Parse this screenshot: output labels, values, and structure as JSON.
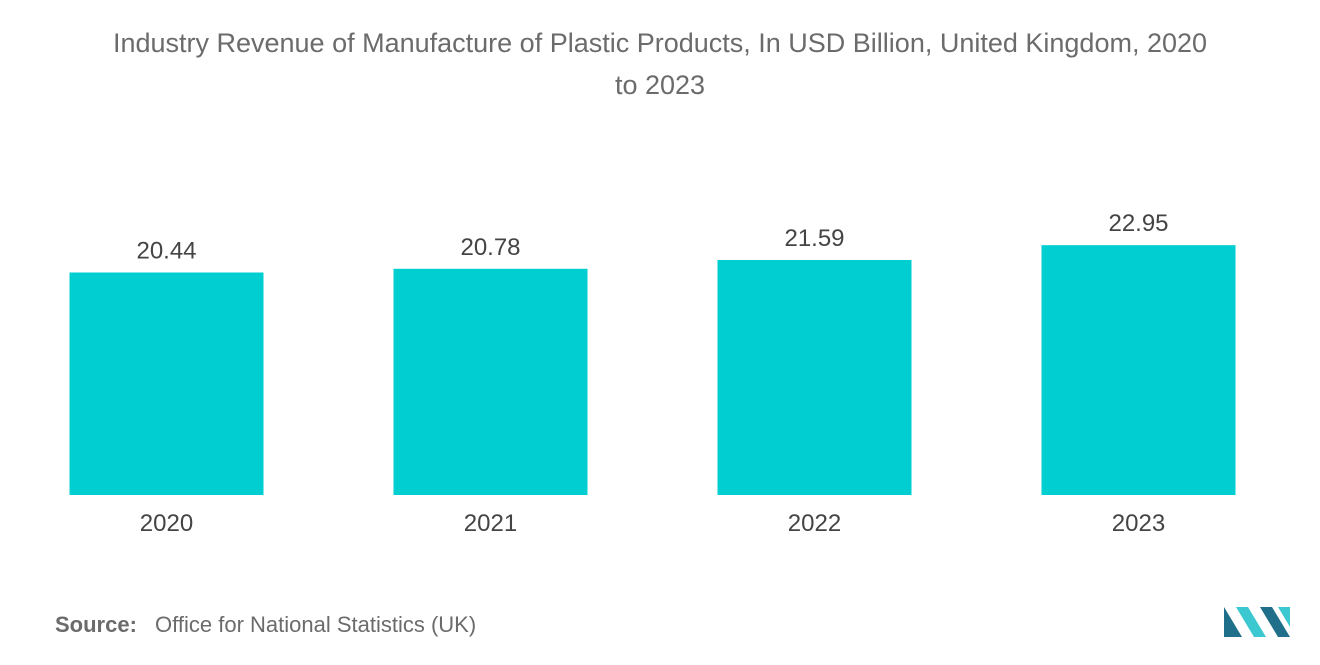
{
  "title_line1": "Industry Revenue of Manufacture of Plastic Products, In USD Billion, United Kingdom, 2020",
  "title_line2": "to 2023",
  "source": {
    "label": "Source:",
    "text": "Office for National Statistics (UK)"
  },
  "colors": {
    "bar": "#00CED1",
    "text": "#444444",
    "title": "#6b6b6b",
    "logo_dark": "#1f6f8b",
    "logo_light": "#3cc8d0"
  },
  "logo_icon": "mordor-intelligence-logo",
  "chart_data": {
    "type": "bar",
    "categories": [
      "2020",
      "2021",
      "2022",
      "2023"
    ],
    "values": [
      20.44,
      20.78,
      21.59,
      22.95
    ],
    "value_labels": [
      "20.44",
      "20.78",
      "21.59",
      "22.95"
    ],
    "title": "Industry Revenue of Manufacture of Plastic Products, In USD Billion, United Kingdom, 2020 to 2023",
    "xlabel": "",
    "ylabel": "",
    "grid": false,
    "legend": "none"
  }
}
